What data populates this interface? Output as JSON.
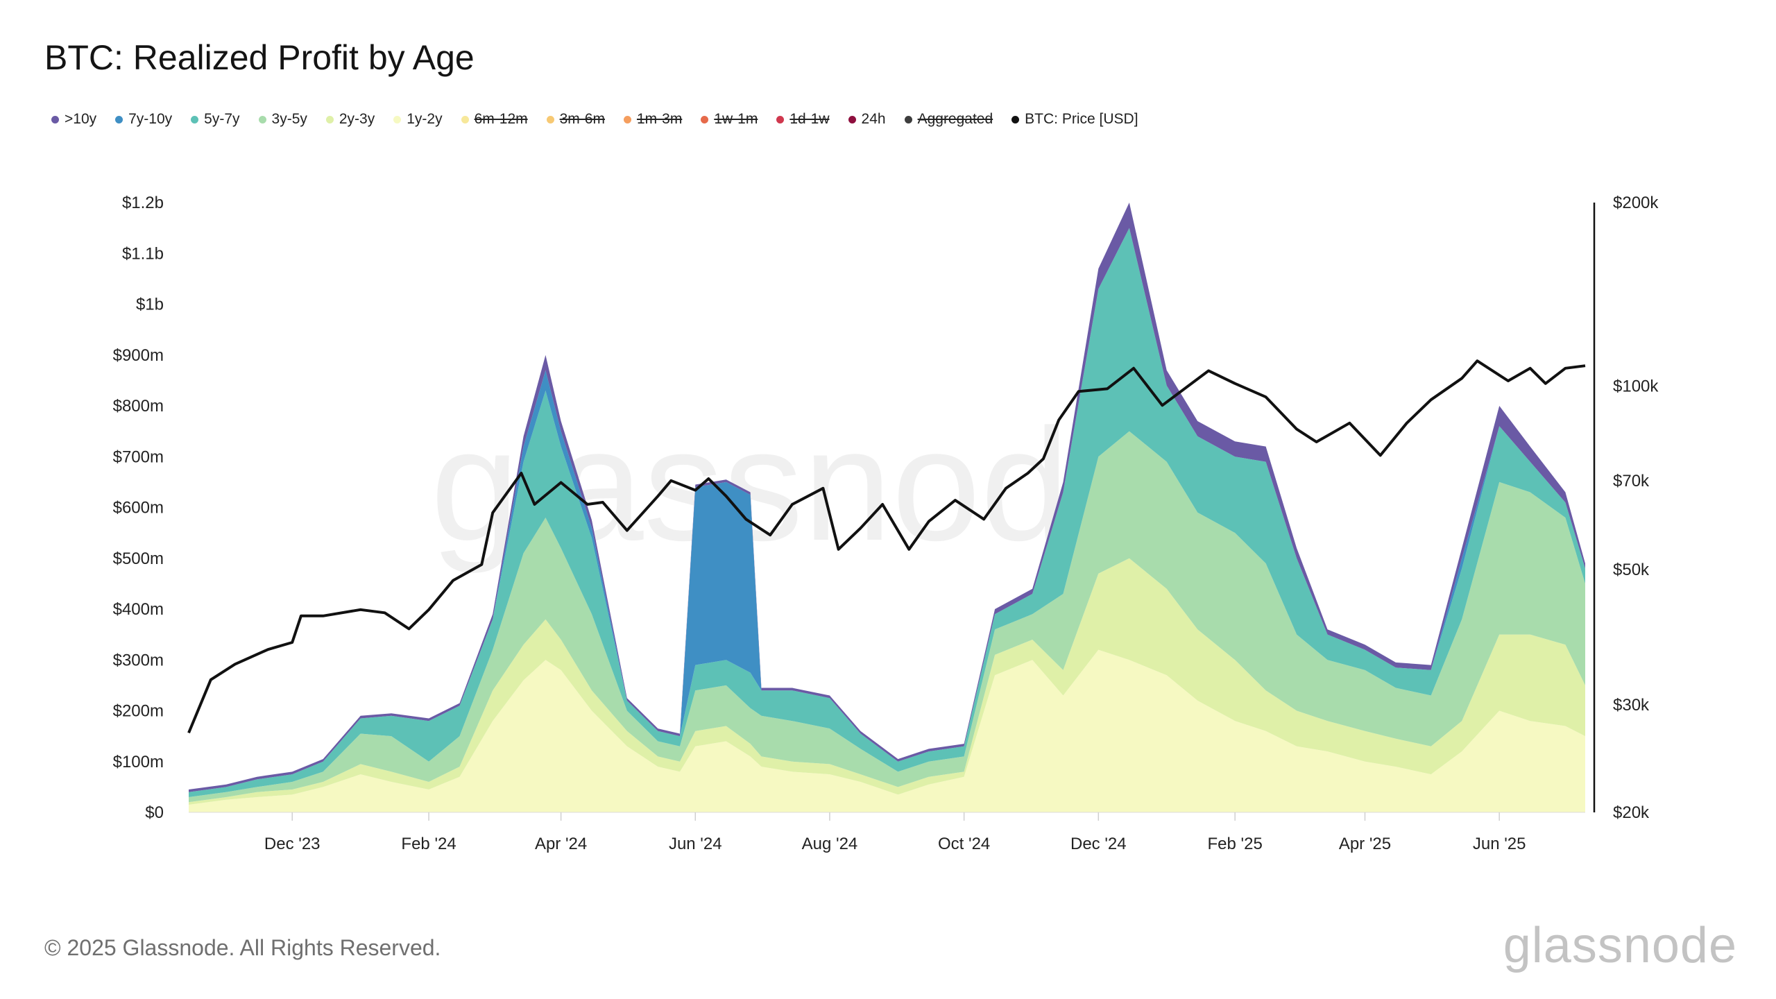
{
  "chart_data": {
    "type": "area",
    "title": "BTC: Realized Profit by Age",
    "stacked": true,
    "xlabel": "",
    "ylabel": "",
    "y_range": [
      0,
      1200000000
    ],
    "y2_range": [
      20000,
      200000
    ],
    "y2_scale": "log",
    "legend_position": "top-left",
    "grid": false,
    "x_tick_labels": [
      "Dec '23",
      "Feb '24",
      "Apr '24",
      "Jun '24",
      "Aug '24",
      "Oct '24",
      "Dec '24",
      "Feb '25",
      "Apr '25",
      "Jun '25"
    ],
    "x_ticks": [
      "2023-12-01",
      "2024-02-01",
      "2024-04-01",
      "2024-06-01",
      "2024-08-01",
      "2024-10-01",
      "2024-12-01",
      "2025-02-01",
      "2025-04-01",
      "2025-06-01"
    ],
    "y_tick_labels": [
      "$0",
      "$100m",
      "$200m",
      "$300m",
      "$400m",
      "$500m",
      "$600m",
      "$700m",
      "$800m",
      "$900m",
      "$1b",
      "$1.1b",
      "$1.2b"
    ],
    "y_tick_values": [
      0,
      100000000,
      200000000,
      300000000,
      400000000,
      500000000,
      600000000,
      700000000,
      800000000,
      900000000,
      1000000000,
      1100000000,
      1200000000
    ],
    "y2_tick_labels": [
      "$20k",
      "$30k",
      "$50k",
      "$70k",
      "$100k",
      "$200k"
    ],
    "y2_tick_values": [
      20000,
      30000,
      50000,
      70000,
      100000,
      200000
    ],
    "x": [
      "2023-10-15",
      "2023-11-01",
      "2023-11-15",
      "2023-12-01",
      "2023-12-15",
      "2024-01-01",
      "2024-01-15",
      "2024-02-01",
      "2024-02-15",
      "2024-03-01",
      "2024-03-15",
      "2024-03-25",
      "2024-04-01",
      "2024-04-15",
      "2024-05-01",
      "2024-05-15",
      "2024-05-25",
      "2024-06-01",
      "2024-06-15",
      "2024-06-26",
      "2024-07-01",
      "2024-07-15",
      "2024-08-01",
      "2024-08-15",
      "2024-09-01",
      "2024-09-15",
      "2024-10-01",
      "2024-10-15",
      "2024-11-01",
      "2024-11-15",
      "2024-12-01",
      "2024-12-15",
      "2025-01-01",
      "2025-01-15",
      "2025-02-01",
      "2025-02-15",
      "2025-03-01",
      "2025-03-15",
      "2025-04-01",
      "2025-04-15",
      "2025-05-01",
      "2025-05-15",
      "2025-06-01",
      "2025-06-15",
      "2025-07-01",
      "2025-07-10"
    ],
    "series": [
      {
        "name": "1y-2y",
        "color": "#f6f9c2",
        "values": [
          15000000,
          25000000,
          30000000,
          35000000,
          50000000,
          75000000,
          60000000,
          45000000,
          70000000,
          180000000,
          260000000,
          300000000,
          280000000,
          200000000,
          130000000,
          90000000,
          80000000,
          130000000,
          140000000,
          110000000,
          90000000,
          80000000,
          75000000,
          60000000,
          35000000,
          55000000,
          70000000,
          270000000,
          300000000,
          230000000,
          320000000,
          300000000,
          270000000,
          220000000,
          180000000,
          160000000,
          130000000,
          120000000,
          100000000,
          90000000,
          75000000,
          120000000,
          200000000,
          180000000,
          170000000,
          150000000
        ]
      },
      {
        "name": "2y-3y",
        "color": "#dff0a8",
        "values": [
          5000000,
          5000000,
          10000000,
          10000000,
          10000000,
          20000000,
          20000000,
          15000000,
          20000000,
          60000000,
          70000000,
          80000000,
          60000000,
          40000000,
          30000000,
          20000000,
          20000000,
          30000000,
          30000000,
          25000000,
          20000000,
          20000000,
          20000000,
          15000000,
          15000000,
          15000000,
          10000000,
          40000000,
          40000000,
          50000000,
          150000000,
          200000000,
          170000000,
          140000000,
          120000000,
          80000000,
          70000000,
          60000000,
          60000000,
          55000000,
          55000000,
          60000000,
          150000000,
          170000000,
          160000000,
          100000000
        ]
      },
      {
        "name": "3y-5y",
        "color": "#a8dcac",
        "values": [
          10000000,
          10000000,
          10000000,
          15000000,
          20000000,
          60000000,
          70000000,
          40000000,
          60000000,
          80000000,
          180000000,
          200000000,
          180000000,
          150000000,
          40000000,
          30000000,
          30000000,
          80000000,
          80000000,
          70000000,
          80000000,
          80000000,
          70000000,
          50000000,
          30000000,
          30000000,
          30000000,
          50000000,
          50000000,
          150000000,
          230000000,
          250000000,
          250000000,
          230000000,
          250000000,
          250000000,
          150000000,
          120000000,
          120000000,
          100000000,
          100000000,
          200000000,
          300000000,
          280000000,
          250000000,
          200000000
        ]
      },
      {
        "name": "5y-7y",
        "color": "#5dc1b6",
        "values": [
          10000000,
          10000000,
          15000000,
          15000000,
          20000000,
          30000000,
          40000000,
          80000000,
          60000000,
          60000000,
          180000000,
          250000000,
          200000000,
          150000000,
          20000000,
          20000000,
          20000000,
          50000000,
          50000000,
          70000000,
          50000000,
          60000000,
          60000000,
          30000000,
          20000000,
          20000000,
          20000000,
          30000000,
          40000000,
          200000000,
          330000000,
          400000000,
          150000000,
          150000000,
          150000000,
          200000000,
          150000000,
          50000000,
          40000000,
          40000000,
          50000000,
          100000000,
          110000000,
          60000000,
          30000000,
          30000000
        ]
      },
      {
        "name": "7y-10y",
        "color": "#3f8fc4",
        "values": [
          0,
          0,
          0,
          0,
          0,
          0,
          0,
          0,
          0,
          0,
          30000000,
          40000000,
          30000000,
          20000000,
          0,
          0,
          0,
          350000000,
          350000000,
          350000000,
          0,
          0,
          0,
          0,
          0,
          0,
          0,
          0,
          0,
          0,
          0,
          0,
          0,
          0,
          0,
          0,
          0,
          0,
          0,
          0,
          0,
          20000000,
          0,
          0,
          0,
          0
        ]
      },
      {
        "name": ">10y",
        "color": "#6a5aa5",
        "values": [
          5000000,
          5000000,
          5000000,
          5000000,
          5000000,
          5000000,
          5000000,
          5000000,
          5000000,
          10000000,
          20000000,
          30000000,
          20000000,
          15000000,
          5000000,
          5000000,
          5000000,
          5000000,
          5000000,
          5000000,
          5000000,
          5000000,
          5000000,
          5000000,
          5000000,
          5000000,
          5000000,
          10000000,
          10000000,
          20000000,
          40000000,
          50000000,
          30000000,
          30000000,
          30000000,
          30000000,
          20000000,
          10000000,
          10000000,
          10000000,
          10000000,
          20000000,
          40000000,
          30000000,
          20000000,
          10000000
        ]
      }
    ],
    "price_series": {
      "name": "BTC: Price [USD]",
      "color": "#111111",
      "x": [
        "2023-10-15",
        "2023-10-25",
        "2023-11-05",
        "2023-11-20",
        "2023-12-01",
        "2023-12-05",
        "2023-12-15",
        "2024-01-01",
        "2024-01-12",
        "2024-01-23",
        "2024-02-01",
        "2024-02-12",
        "2024-02-25",
        "2024-03-01",
        "2024-03-14",
        "2024-03-20",
        "2024-04-01",
        "2024-04-13",
        "2024-04-20",
        "2024-05-01",
        "2024-05-15",
        "2024-05-21",
        "2024-06-01",
        "2024-06-07",
        "2024-06-15",
        "2024-06-24",
        "2024-07-05",
        "2024-07-15",
        "2024-07-29",
        "2024-08-05",
        "2024-08-15",
        "2024-08-25",
        "2024-09-06",
        "2024-09-15",
        "2024-09-27",
        "2024-10-10",
        "2024-10-20",
        "2024-10-30",
        "2024-11-06",
        "2024-11-13",
        "2024-11-22",
        "2024-12-05",
        "2024-12-17",
        "2024-12-30",
        "2025-01-20",
        "2025-02-01",
        "2025-02-15",
        "2025-03-01",
        "2025-03-10",
        "2025-03-25",
        "2025-04-08",
        "2025-04-20",
        "2025-05-01",
        "2025-05-15",
        "2025-05-22",
        "2025-06-05",
        "2025-06-15",
        "2025-06-22",
        "2025-07-01",
        "2025-07-10"
      ],
      "values": [
        27000,
        33000,
        35000,
        37000,
        38000,
        42000,
        42000,
        43000,
        42500,
        40000,
        43000,
        48000,
        51000,
        62000,
        72000,
        64000,
        69500,
        64000,
        64500,
        58000,
        66000,
        70000,
        67500,
        70500,
        66000,
        60500,
        57000,
        64000,
        68000,
        54000,
        58500,
        64000,
        54000,
        60000,
        65000,
        60500,
        68000,
        72000,
        76000,
        88000,
        98000,
        99000,
        107000,
        93000,
        106000,
        101000,
        96000,
        85000,
        81000,
        87000,
        77000,
        87000,
        95000,
        103000,
        110000,
        102000,
        107000,
        101000,
        107000,
        108000
      ]
    }
  },
  "legend": [
    {
      "label": ">10y",
      "color": "#6a5aa5",
      "active": true
    },
    {
      "label": "7y-10y",
      "color": "#3f8fc4",
      "active": true
    },
    {
      "label": "5y-7y",
      "color": "#5dc1b6",
      "active": true
    },
    {
      "label": "3y-5y",
      "color": "#a8dcac",
      "active": true
    },
    {
      "label": "2y-3y",
      "color": "#dff0a8",
      "active": true
    },
    {
      "label": "1y-2y",
      "color": "#f6f9c2",
      "active": true
    },
    {
      "label": "6m-12m",
      "color": "#f7e89a",
      "active": false
    },
    {
      "label": "3m-6m",
      "color": "#f7c973",
      "active": false
    },
    {
      "label": "1m-3m",
      "color": "#f59e5e",
      "active": false
    },
    {
      "label": "1w-1m",
      "color": "#e66a4a",
      "active": false
    },
    {
      "label": "1d-1w",
      "color": "#d0384e",
      "active": false
    },
    {
      "label": "24h",
      "color": "#8e0f3e",
      "active": true
    },
    {
      "label": "Aggregated",
      "color": "#3d3d3d",
      "active": false
    },
    {
      "label": "BTC: Price [USD]",
      "color": "#111111",
      "active": true
    }
  ],
  "footer": {
    "copyright": "© 2025 Glassnode. All Rights Reserved.",
    "brand": "glassnode"
  }
}
